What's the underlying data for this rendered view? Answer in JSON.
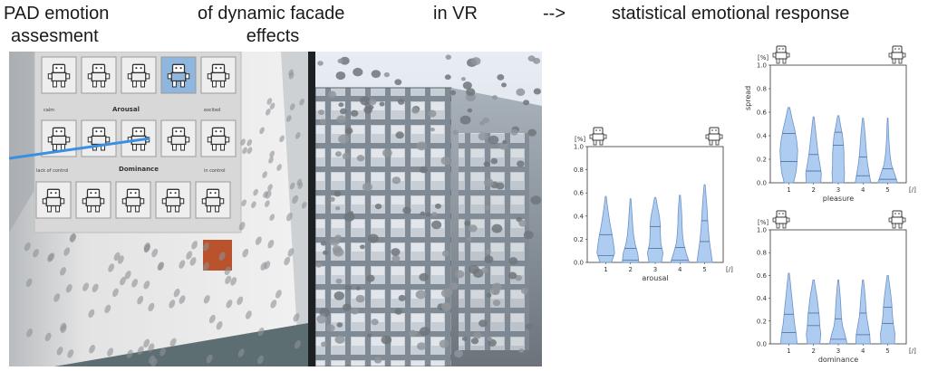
{
  "headers": {
    "pad_line1": "PAD emotion",
    "pad_line2": "assesment",
    "facade_line1": "of dynamic facade",
    "facade_line2": "effects",
    "vr": "in VR",
    "arrow": "-->",
    "statistical": "statistical emotional response"
  },
  "vr_scene": {
    "sam_panel_labels": [
      "Arousal",
      "Dominance"
    ],
    "sam_anchor_labels": [
      "calm",
      "excited",
      "lack of control",
      "in control"
    ],
    "colors": {
      "wall": "#ececec",
      "sky": "#dfe6ee",
      "building": "#9aa3ad",
      "floor": "#5d6e73",
      "marker": "#b8532e"
    }
  },
  "chart_data": [
    {
      "id": "arousal",
      "type": "violin",
      "categories": [
        "1",
        "2",
        "3",
        "4",
        "5"
      ],
      "xlabel": "arousal",
      "unit_x": "[/]",
      "unit_y": "[%]",
      "ylim": [
        0,
        1.0
      ],
      "yticks": [
        "0.0",
        "0.2",
        "0.4",
        "0.6",
        "0.8",
        "1.0"
      ],
      "color": "#aecbf0",
      "edge": "#6d93c9",
      "violins": [
        {
          "top": 0.57,
          "width": [
            0.55,
            0.85,
            0.75,
            0.6,
            0.42,
            0.28,
            0.15,
            0.05
          ],
          "lines": [
            0.24,
            0.06
          ]
        },
        {
          "top": 0.55,
          "width": [
            0.8,
            0.7,
            0.45,
            0.3,
            0.22,
            0.16,
            0.1,
            0.04
          ],
          "lines": [
            0.12,
            0.02
          ]
        },
        {
          "top": 0.56,
          "width": [
            0.6,
            0.75,
            0.55,
            0.5,
            0.5,
            0.4,
            0.22,
            0.06
          ],
          "lines": [
            0.31,
            0.12
          ]
        },
        {
          "top": 0.58,
          "width": [
            0.9,
            0.6,
            0.35,
            0.25,
            0.2,
            0.18,
            0.12,
            0.05
          ],
          "lines": [
            0.13,
            0.02
          ]
        },
        {
          "top": 0.67,
          "width": [
            0.75,
            0.6,
            0.45,
            0.35,
            0.28,
            0.22,
            0.14,
            0.05
          ],
          "lines": [
            0.36,
            0.18
          ]
        }
      ]
    },
    {
      "id": "pleasure",
      "type": "violin",
      "categories": [
        "1",
        "2",
        "3",
        "4",
        "5"
      ],
      "xlabel": "pleasure",
      "ylabel": "spread",
      "unit_x": "[/]",
      "unit_y": "[%]",
      "ylim": [
        0,
        1.0
      ],
      "yticks": [
        "0.0",
        "0.2",
        "0.4",
        "0.6",
        "0.8",
        "1.0"
      ],
      "color": "#aecbf0",
      "edge": "#6d93c9",
      "violins": [
        {
          "top": 0.64,
          "width": [
            0.45,
            0.7,
            0.8,
            0.85,
            0.75,
            0.55,
            0.3,
            0.08
          ],
          "lines": [
            0.42,
            0.18
          ]
        },
        {
          "top": 0.56,
          "width": [
            0.7,
            0.75,
            0.6,
            0.45,
            0.35,
            0.25,
            0.15,
            0.05
          ],
          "lines": [
            0.24,
            0.1
          ]
        },
        {
          "top": 0.57,
          "width": [
            0.55,
            0.6,
            0.55,
            0.55,
            0.5,
            0.4,
            0.22,
            0.06
          ],
          "lines": [
            0.43,
            0.32
          ]
        },
        {
          "top": 0.55,
          "width": [
            0.75,
            0.6,
            0.45,
            0.35,
            0.28,
            0.22,
            0.14,
            0.05
          ],
          "lines": [
            0.22,
            0.06
          ]
        },
        {
          "top": 0.55,
          "width": [
            0.95,
            0.65,
            0.35,
            0.22,
            0.15,
            0.1,
            0.07,
            0.03
          ],
          "lines": [
            0.12,
            0.03
          ]
        }
      ]
    },
    {
      "id": "dominance",
      "type": "violin",
      "categories": [
        "1",
        "2",
        "3",
        "4",
        "5"
      ],
      "xlabel": "dominance",
      "unit_x": "[/]",
      "unit_y": "[%]",
      "ylim": [
        0,
        1.0
      ],
      "yticks": [
        "0.0",
        "0.2",
        "0.4",
        "0.6",
        "0.8",
        "1.0"
      ],
      "color": "#aecbf0",
      "edge": "#6d93c9",
      "violins": [
        {
          "top": 0.62,
          "width": [
            0.8,
            0.7,
            0.55,
            0.45,
            0.35,
            0.25,
            0.15,
            0.05
          ],
          "lines": [
            0.26,
            0.1
          ]
        },
        {
          "top": 0.56,
          "width": [
            0.6,
            0.7,
            0.6,
            0.55,
            0.45,
            0.35,
            0.2,
            0.06
          ],
          "lines": [
            0.27,
            0.16
          ]
        },
        {
          "top": 0.56,
          "width": [
            0.85,
            0.65,
            0.4,
            0.3,
            0.25,
            0.2,
            0.12,
            0.04
          ],
          "lines": [
            0.22,
            0.04
          ]
        },
        {
          "top": 0.56,
          "width": [
            0.7,
            0.65,
            0.5,
            0.35,
            0.28,
            0.22,
            0.14,
            0.05
          ],
          "lines": [
            0.27,
            0.08
          ]
        },
        {
          "top": 0.6,
          "width": [
            0.65,
            0.7,
            0.55,
            0.45,
            0.4,
            0.3,
            0.18,
            0.06
          ],
          "lines": [
            0.32,
            0.18
          ]
        }
      ]
    }
  ]
}
